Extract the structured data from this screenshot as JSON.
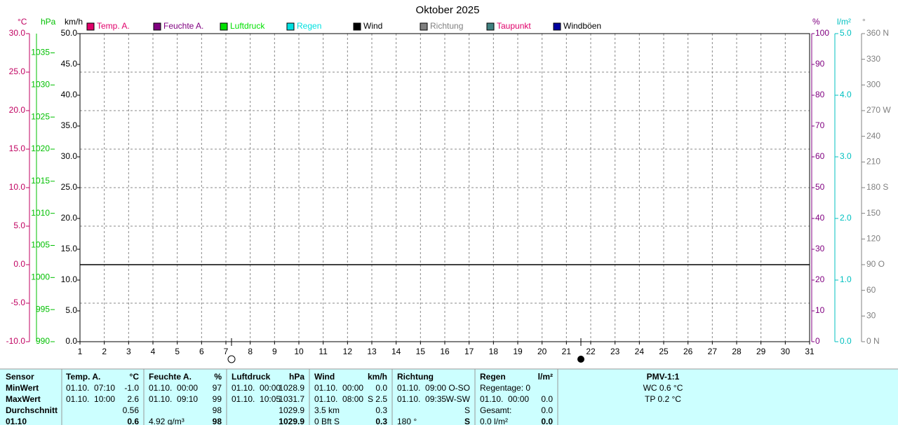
{
  "chart_data": {
    "type": "line",
    "title": "Oktober 2025",
    "series": [
      {
        "name": "Temp. A.",
        "color": "#e0006a"
      },
      {
        "name": "Feuchte A.",
        "color": "#800080"
      },
      {
        "name": "Luftdruck",
        "color": "#00e000"
      },
      {
        "name": "Regen",
        "color": "#00e0e0"
      },
      {
        "name": "Wind",
        "color": "#000000"
      },
      {
        "name": "Richtung",
        "color": "#808080"
      },
      {
        "name": "Taupunkt",
        "color": "#408080"
      },
      {
        "name": "Windböen",
        "color": "#0000a0"
      }
    ],
    "xlim": [
      1,
      31
    ],
    "xticks": [
      1,
      2,
      3,
      4,
      5,
      6,
      7,
      8,
      9,
      10,
      11,
      12,
      13,
      14,
      15,
      16,
      17,
      18,
      19,
      20,
      21,
      22,
      23,
      24,
      25,
      26,
      27,
      28,
      29,
      30,
      31
    ],
    "grid": true,
    "axes": [
      {
        "label": "°C",
        "color": "#c00060",
        "lim": [
          -10,
          30
        ],
        "ticks": [
          {
            "value": -10,
            "label": "-10.0"
          },
          {
            "value": -5,
            "label": "-5.0"
          },
          {
            "value": 0,
            "label": "0.0"
          },
          {
            "value": 5,
            "label": "5.0"
          },
          {
            "value": 10,
            "label": "10.0"
          },
          {
            "value": 15,
            "label": "15.0"
          },
          {
            "value": 20,
            "label": "20.0"
          },
          {
            "value": 25,
            "label": "25.0"
          },
          {
            "value": 30,
            "label": "30.0"
          }
        ]
      },
      {
        "label": "hPa",
        "color": "#00c000",
        "lim": [
          990,
          1038
        ],
        "ticks": [
          990,
          995,
          1000,
          1005,
          1010,
          1015,
          1020,
          1025,
          1030,
          1035
        ]
      },
      {
        "label": "km/h",
        "color": "#000000",
        "lim": [
          0,
          50
        ],
        "ticks": [
          {
            "value": 0,
            "label": "0.0"
          },
          {
            "value": 5,
            "label": "5.0"
          },
          {
            "value": 10,
            "label": "10.0"
          },
          {
            "value": 15,
            "label": "15.0"
          },
          {
            "value": 20,
            "label": "20.0"
          },
          {
            "value": 25,
            "label": "25.0"
          },
          {
            "value": 30,
            "label": "30.0"
          },
          {
            "value": 35,
            "label": "35.0"
          },
          {
            "value": 40,
            "label": "40.0"
          },
          {
            "value": 45,
            "label": "45.0"
          },
          {
            "value": 50,
            "label": "50.0"
          }
        ]
      },
      {
        "label": "%",
        "color": "#800080",
        "lim": [
          0,
          100
        ],
        "ticks": [
          0,
          10,
          20,
          30,
          40,
          50,
          60,
          70,
          80,
          90,
          100
        ]
      },
      {
        "label": "l/m²",
        "color": "#00c0c0",
        "lim": [
          0,
          5
        ],
        "ticks": [
          {
            "value": 0,
            "label": "0.0"
          },
          {
            "value": 1,
            "label": "1.0"
          },
          {
            "value": 2,
            "label": "2.0"
          },
          {
            "value": 3,
            "label": "3.0"
          },
          {
            "value": 4,
            "label": "4.0"
          },
          {
            "value": 5,
            "label": "5.0"
          }
        ]
      },
      {
        "label": "°",
        "color": "#808080",
        "lim": [
          0,
          360
        ],
        "ticks": [
          {
            "value": 0,
            "label": "0 N"
          },
          30,
          60,
          {
            "value": 90,
            "label": "90 O"
          },
          120,
          150,
          {
            "value": 180,
            "label": "180 S"
          },
          210,
          240,
          {
            "value": 270,
            "label": "270 W"
          },
          300,
          330,
          {
            "value": 360,
            "label": "360 N"
          }
        ]
      }
    ]
  },
  "table": {
    "rows": [
      [
        "Sensor",
        [
          "Temp. A.",
          "°C"
        ],
        [
          "Feuchte A.",
          "%"
        ],
        [
          "Luftdruck",
          "hPa"
        ],
        [
          "Wind",
          "km/h"
        ],
        [
          "Richtung",
          null
        ],
        [
          "Regen",
          "l/m²"
        ],
        "PMV-1:1"
      ],
      [
        "MinWert",
        [
          "01.10.  07:10",
          "-1.0"
        ],
        [
          "01.10.  00:00",
          "97"
        ],
        [
          "01.10.  00:00",
          "1028.9"
        ],
        [
          "01.10.  00:00",
          "0.0"
        ],
        [
          "01.10.  09:00",
          "O-SO"
        ],
        [
          "Regentage: 0",
          null
        ],
        "WC 0.6 °C"
      ],
      [
        "MaxWert",
        [
          "01.10.  10:00",
          "2.6"
        ],
        [
          "01.10.  09:10",
          "99"
        ],
        [
          "01.10.  10:05",
          "1031.7"
        ],
        [
          "01.10.  08:00",
          "S 2.5"
        ],
        [
          "01.10.  09:35",
          "W-SW"
        ],
        [
          "01.10.  00:00",
          "0.0"
        ],
        "TP 0.2 °C"
      ],
      [
        "Durchschnitt",
        [
          null,
          "0.56"
        ],
        [
          null,
          "98"
        ],
        [
          null,
          "1029.9"
        ],
        [
          "3.5 km",
          "0.3"
        ],
        [
          null,
          "S"
        ],
        [
          "Gesamt:",
          "0.0"
        ],
        null
      ],
      [
        "01.10",
        [
          null,
          "0.6"
        ],
        [
          "4.92 g/m³",
          "98"
        ],
        [
          null,
          "1029.9"
        ],
        [
          "0 Bft S",
          "0.3"
        ],
        [
          "180 °",
          "S"
        ],
        [
          "0.0 l/m²",
          "0.0"
        ],
        null
      ]
    ]
  }
}
